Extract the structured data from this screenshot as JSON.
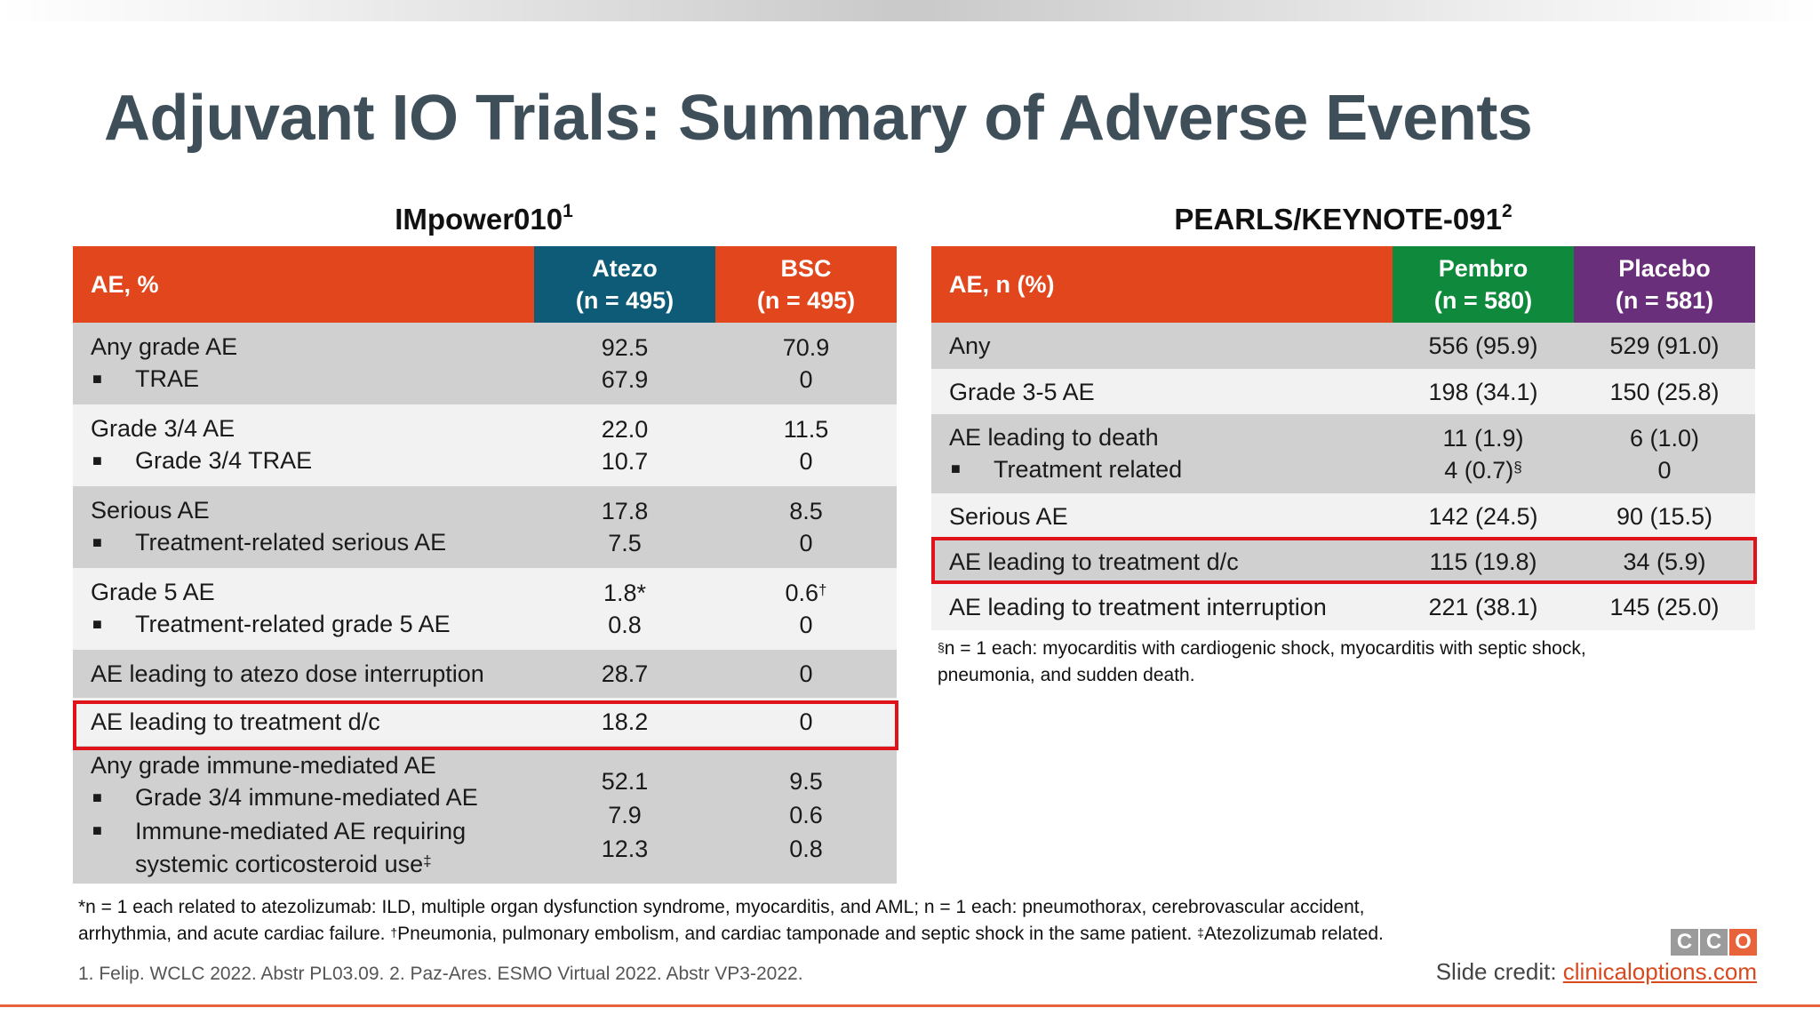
{
  "title": "Adjuvant IO Trials: Summary of Adverse Events",
  "colors": {
    "orange": "#e1461d",
    "atezo": "#0e5b78",
    "pembro": "#0f8a3c",
    "placebo": "#6a2f7a",
    "highlight": "#e0121a"
  },
  "left": {
    "name": "IMpower010",
    "ref": "1",
    "head": {
      "c1": "AE, %",
      "c2a": "Atezo",
      "c2b": "(n = 495)",
      "c3a": "BSC",
      "c3b": "(n = 495)"
    },
    "rows": [
      {
        "l1": "Any grade AE",
        "l2": "TRAE",
        "a1": "92.5",
        "a2": "67.9",
        "b1": "70.9",
        "b2": "0"
      },
      {
        "l1": "Grade 3/4 AE",
        "l2": "Grade 3/4 TRAE",
        "a1": "22.0",
        "a2": "10.7",
        "b1": "11.5",
        "b2": "0"
      },
      {
        "l1": "Serious AE",
        "l2": "Treatment-related serious AE",
        "a1": "17.8",
        "a2": "7.5",
        "b1": "8.5",
        "b2": "0"
      },
      {
        "l1": "Grade 5 AE",
        "l2": "Treatment-related grade 5 AE",
        "a1": "1.8*",
        "a2": "0.8",
        "b1": "0.6",
        "b1sup": "†",
        "b2": "0"
      },
      {
        "l1": "AE leading to atezo dose interruption",
        "a1": "28.7",
        "b1": "0"
      },
      {
        "l1": "AE leading to treatment d/c",
        "a1": "18.2",
        "b1": "0"
      },
      {
        "l1": "Any grade immune-mediated AE",
        "l2": "Grade 3/4 immune-mediated AE",
        "l3": "Immune-mediated AE requiring",
        "l4": "systemic corticosteroid use",
        "l4sup": "‡",
        "a1": "52.1",
        "a2": "7.9",
        "a3": "12.3",
        "b1": "9.5",
        "b2": "0.6",
        "b3": "0.8"
      }
    ]
  },
  "right": {
    "name": "PEARLS/KEYNOTE-091",
    "ref": "2",
    "head": {
      "c1": "AE, n (%)",
      "c2a": "Pembro",
      "c2b": "(n = 580)",
      "c3a": "Placebo",
      "c3b": "(n = 581)"
    },
    "rows": [
      {
        "l1": "Any",
        "a1": "556 (95.9)",
        "b1": "529 (91.0)"
      },
      {
        "l1": "Grade 3-5 AE",
        "a1": "198 (34.1)",
        "b1": "150 (25.8)"
      },
      {
        "l1": "AE leading to death",
        "l2": "Treatment related",
        "a1": "11 (1.9)",
        "a2": "4 (0.7)",
        "a2sup": "§",
        "b1": "6 (1.0)",
        "b2": "0"
      },
      {
        "l1": "Serious AE",
        "a1": "142 (24.5)",
        "b1": "90 (15.5)"
      },
      {
        "l1": "AE leading to treatment d/c",
        "a1": "115 (19.8)",
        "b1": "34 (5.9)"
      },
      {
        "l1": "AE leading to treatment interruption",
        "a1": "221 (38.1)",
        "b1": "145 (25.0)"
      }
    ],
    "footnote_sup": "§",
    "footnote_l1": "n = 1 each: myocarditis with cardiogenic shock, myocarditis with septic shock,",
    "footnote_l2": "pneumonia, and sudden death."
  },
  "footnote": {
    "l1": "*n = 1 each related to atezolizumab: ILD, multiple organ dysfunction syndrome, myocarditis, and AML; n = 1 each: pneumothorax, cerebrovascular accident,",
    "l2a": "arrhythmia, and acute cardiac failure. ",
    "sup1": "†",
    "l2b": "Pneumonia, pulmonary embolism, and cardiac tamponade and septic shock in the same patient. ",
    "sup2": "‡",
    "l2c": "Atezolizumab related."
  },
  "references": "1. Felip. WCLC 2022. Abstr PL03.09. 2. Paz-Ares. ESMO Virtual 2022. Abstr VP3-2022.",
  "credit": {
    "label": "Slide credit: ",
    "link": "clinicaloptions.com"
  },
  "logo": {
    "letters": [
      "C",
      "C",
      "O"
    ],
    "colors": [
      "#9b9b9b",
      "#9b9b9b",
      "#e8623a"
    ]
  }
}
